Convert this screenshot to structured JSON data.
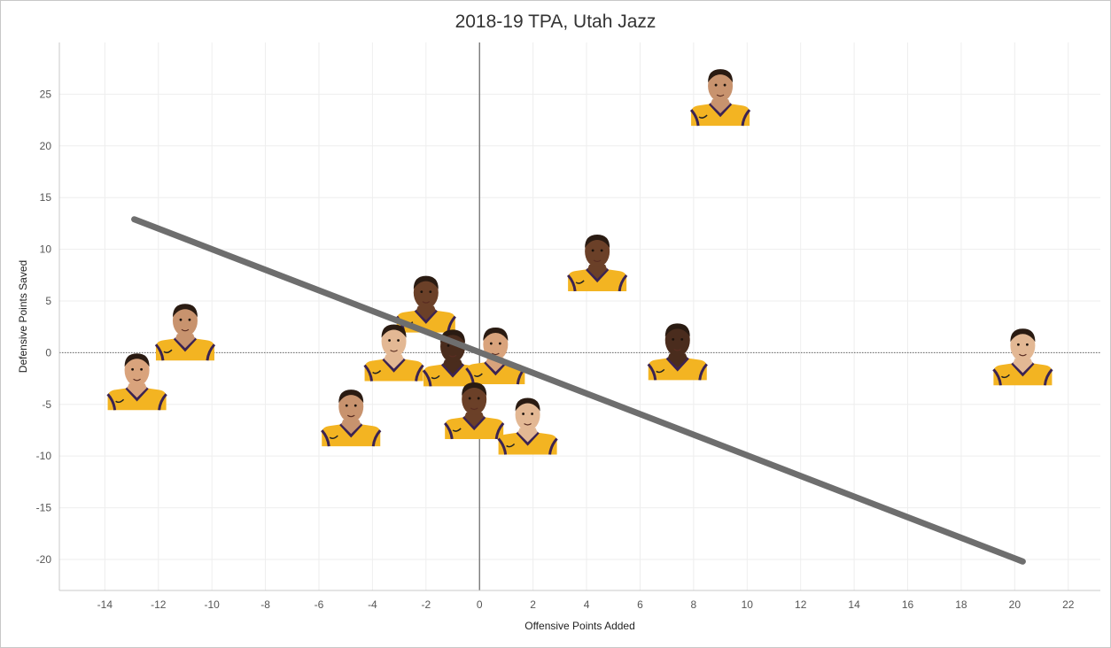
{
  "chart_data": {
    "type": "scatter",
    "title": "2018-19 TPA, Utah Jazz",
    "xlabel": "Offensive Points Added",
    "ylabel": "Defensive Points Saved",
    "xlim": [
      -15.7,
      23.2
    ],
    "ylim": [
      -23,
      30
    ],
    "x_ticks": [
      -14,
      -12,
      -10,
      -8,
      -6,
      -4,
      -2,
      0,
      2,
      4,
      6,
      8,
      10,
      12,
      14,
      16,
      18,
      20,
      22
    ],
    "y_ticks": [
      -20,
      -15,
      -10,
      -5,
      0,
      5,
      10,
      15,
      20,
      25
    ],
    "grid": true,
    "points": [
      {
        "x": 9.0,
        "y": 24.0
      },
      {
        "x": 4.4,
        "y": 8.0
      },
      {
        "x": 20.3,
        "y": -1.1
      },
      {
        "x": 7.4,
        "y": -0.6
      },
      {
        "x": -12.8,
        "y": -3.5
      },
      {
        "x": -11.0,
        "y": 1.3
      },
      {
        "x": -2.0,
        "y": 4.0
      },
      {
        "x": -3.2,
        "y": -0.7
      },
      {
        "x": -1.0,
        "y": -1.2
      },
      {
        "x": 0.6,
        "y": -1.0
      },
      {
        "x": -4.8,
        "y": -7.0
      },
      {
        "x": -0.2,
        "y": -6.3
      },
      {
        "x": 1.8,
        "y": -7.8
      }
    ],
    "trendline": {
      "x": [
        -12.9,
        20.3
      ],
      "y": [
        12.9,
        -20.2
      ]
    }
  },
  "colors": {
    "jersey": "#f3b422",
    "jersey_trim": "#3b2352",
    "skin": [
      "#c8936e",
      "#6b4028",
      "#e3b894",
      "#4a2c1d",
      "#d9a37c"
    ],
    "trendline": "#6e6e6e",
    "grid": "#eeeeee",
    "zero_line": "#666666"
  }
}
